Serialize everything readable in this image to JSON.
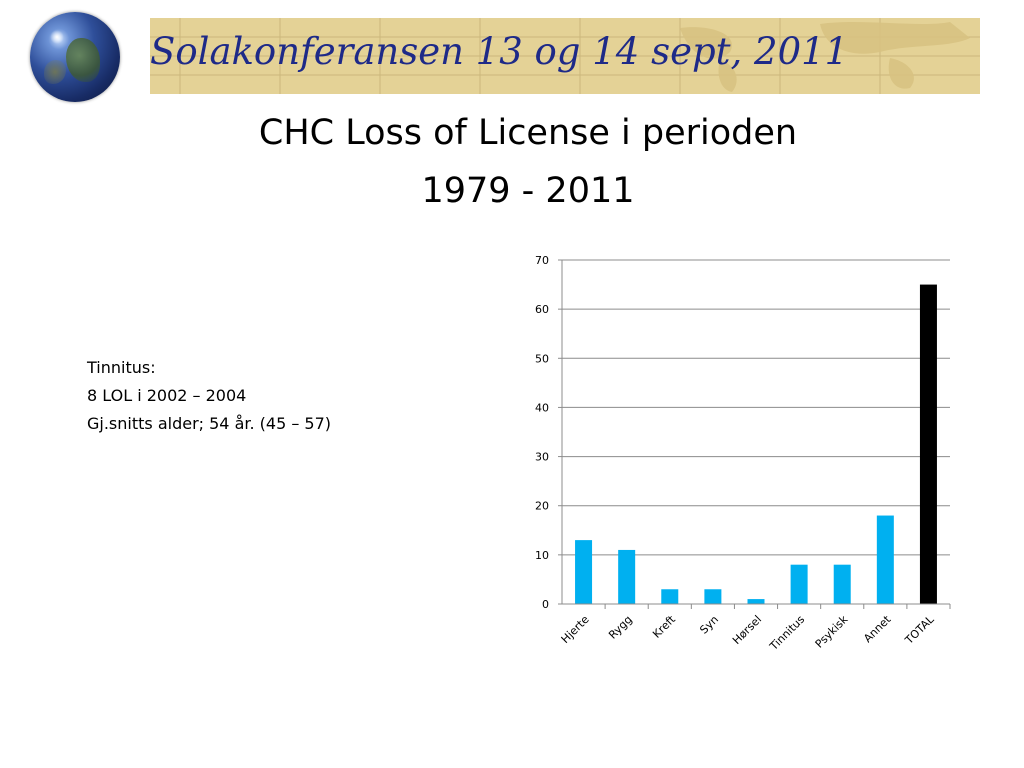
{
  "header": {
    "conference_title": "Solakonferansen 13 og 14 sept, 2011"
  },
  "slide": {
    "title_line1": "CHC Loss of License i perioden",
    "title_line2": "1979 - 2011"
  },
  "notes": {
    "line1": "Tinnitus:",
    "line2": "8 LOL i 2002 – 2004",
    "line3": "Gj.snitts alder; 54 år. (45 – 57)"
  },
  "colors": {
    "bar": "#00b0f0",
    "total_bar": "#000000",
    "gridline": "#8c8c8c",
    "header_band": "#e4d296",
    "conference_title": "#1e2a88"
  },
  "chart_data": {
    "type": "bar",
    "title": "",
    "xlabel": "",
    "ylabel": "",
    "categories": [
      "Hjerte",
      "Rygg",
      "Kreft",
      "Syn",
      "Hørsel",
      "Tinnitus",
      "Psykisk",
      "Annet",
      "TOTAL"
    ],
    "values": [
      13,
      11,
      3,
      3,
      1,
      8,
      8,
      18,
      65
    ],
    "ylim": [
      0,
      70
    ],
    "yticks": [
      0,
      10,
      20,
      30,
      40,
      50,
      60,
      70
    ],
    "grid": true,
    "legend": "none",
    "highlight_category": "TOTAL"
  }
}
